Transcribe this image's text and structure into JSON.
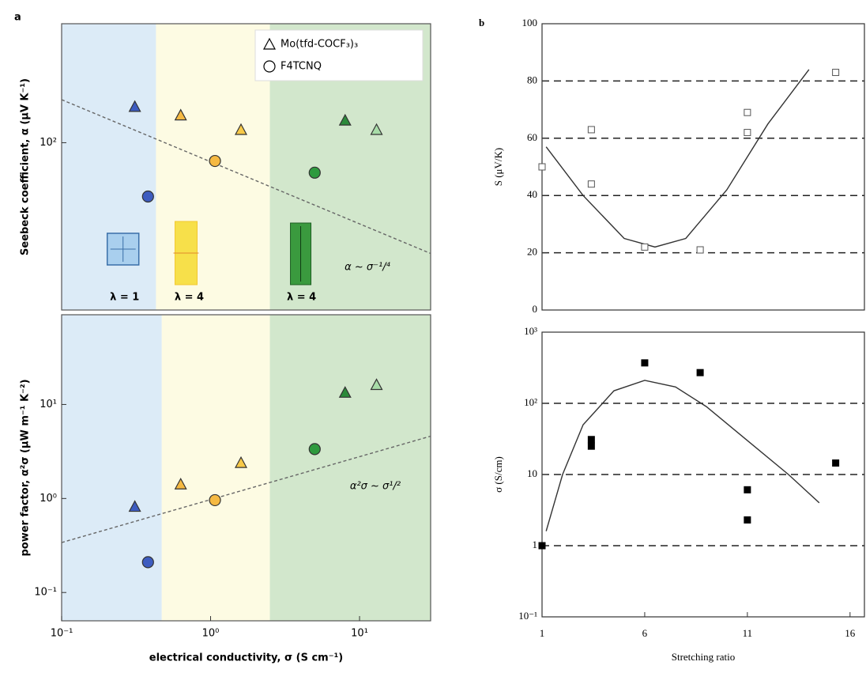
{
  "chart_data": [
    {
      "type": "scatter",
      "panel": "a",
      "ylabel": "Seebeck coefficient, α (μV K⁻¹)",
      "xlog": true,
      "ylog": true,
      "xlim": [
        0.1,
        30
      ],
      "ylim": [
        33,
        220
      ],
      "yticks": [
        {
          "value": 100,
          "label": "10²"
        }
      ],
      "regions": [
        {
          "from": 0.1,
          "to": 0.43,
          "color": "#dcebf7",
          "label": "λ = 1",
          "label_color": "#3b4fb0"
        },
        {
          "from": 0.43,
          "to": 2.5,
          "color": "#fdfbe3",
          "label": "λ = 4",
          "label_color": "#f2b830"
        },
        {
          "from": 2.5,
          "to": 30,
          "color": "#d2e7cc",
          "label": "λ = 4",
          "label_color": "#2e9a3e"
        }
      ],
      "legend": "upper right",
      "series": [
        {
          "name": "Mo(tfd-COCF₃)₃",
          "marker": "triangle",
          "x": [
            0.31,
            0.63,
            1.6,
            8,
            13
          ],
          "values": [
            127,
            120,
            109,
            116,
            109
          ],
          "colors": [
            "#3d5cc0",
            "#f5b942",
            "#f7c948",
            "#2b8a3a",
            "#a8dca8"
          ]
        },
        {
          "name": "F4TCNQ",
          "marker": "circle",
          "x": [
            0.38,
            1.07,
            5
          ],
          "values": [
            70,
            88.6,
            82
          ],
          "colors": [
            "#3d5cc0",
            "#f5b942",
            "#2e9a3e"
          ]
        }
      ],
      "fit": {
        "x": [
          0.1,
          30
        ],
        "y": [
          133,
          48
        ],
        "style": "dashed"
      },
      "annotation": "α ~ σ⁻¹/⁴"
    },
    {
      "type": "scatter",
      "ylabel": "power factor, α²σ (μW m⁻¹ K⁻²)",
      "xlabel": "electrical conductivity, σ (S cm⁻¹)",
      "xlog": true,
      "ylog": true,
      "xlim": [
        0.1,
        30
      ],
      "ylim": [
        0.05,
        90
      ],
      "xticks": [
        {
          "value": 0.1,
          "label": "10⁻¹"
        },
        {
          "value": 1,
          "label": "10⁰"
        },
        {
          "value": 10,
          "label": "10¹"
        }
      ],
      "yticks": [
        {
          "value": 0.1,
          "label": "10⁻¹"
        },
        {
          "value": 1,
          "label": "10⁰"
        },
        {
          "value": 10,
          "label": "10¹"
        }
      ],
      "regions": [
        {
          "from": 0.1,
          "to": 0.47,
          "color": "#dcebf7"
        },
        {
          "from": 0.47,
          "to": 2.5,
          "color": "#fdfbe3"
        },
        {
          "from": 2.5,
          "to": 30,
          "color": "#d2e7cc"
        }
      ],
      "series": [
        {
          "marker": "triangle",
          "x": [
            0.31,
            0.63,
            1.6,
            8,
            13
          ],
          "values": [
            0.82,
            1.42,
            2.4,
            13.4,
            16.2
          ],
          "colors": [
            "#3d5cc0",
            "#f5b942",
            "#f7c948",
            "#2b8a3a",
            "#a8dca8"
          ]
        },
        {
          "marker": "circle",
          "x": [
            0.38,
            1.07,
            5
          ],
          "values": [
            0.21,
            0.96,
            3.35
          ],
          "colors": [
            "#3d5cc0",
            "#f5b942",
            "#2e9a3e"
          ]
        }
      ],
      "fit": {
        "x": [
          0.1,
          30
        ],
        "y": [
          0.34,
          4.6
        ],
        "style": "dashed"
      },
      "annotation": "α²σ ~ σ¹/²"
    },
    {
      "type": "scatter",
      "panel": "b",
      "ylabel": "S (μV/K)",
      "xlim": [
        1,
        16.7
      ],
      "ylim": [
        0,
        100
      ],
      "yticks": [
        0,
        20,
        40,
        60,
        80,
        100
      ],
      "grid_lines": [
        20,
        40,
        60,
        80
      ],
      "series": [
        {
          "marker": "square",
          "filled": false,
          "color": "#555",
          "x": [
            1,
            3.4,
            3.4,
            6,
            8.7,
            11,
            11,
            15.3
          ],
          "values": [
            50,
            63,
            44,
            22,
            21,
            69,
            62,
            83
          ]
        }
      ],
      "fit": {
        "x": [
          1.2,
          3,
          5,
          6.5,
          8,
          10,
          12,
          14
        ],
        "y": [
          57,
          40,
          25,
          22,
          25,
          42,
          65,
          84
        ],
        "style": "solid"
      }
    },
    {
      "type": "scatter",
      "ylabel": "σ (S/cm)",
      "xlabel": "Stretching ratio",
      "ylog": true,
      "xlim": [
        1,
        16.7
      ],
      "ylim": [
        0.1,
        1000
      ],
      "xticks": [
        1,
        6,
        11,
        16
      ],
      "yticks": [
        {
          "value": 0.1,
          "label": "10⁻¹"
        },
        1,
        10,
        {
          "value": 100,
          "label": "10²"
        },
        {
          "value": 1000,
          "label": "10³"
        }
      ],
      "grid_lines": [
        1,
        10,
        100
      ],
      "series": [
        {
          "marker": "square",
          "filled": true,
          "color": "#000",
          "x": [
            1,
            3.4,
            3.4,
            6,
            8.7,
            11,
            11,
            15.3
          ],
          "values": [
            1,
            31,
            25,
            370,
            270,
            6.1,
            2.3,
            14.5
          ]
        }
      ],
      "fit": {
        "x": [
          1.2,
          2,
          3,
          4.5,
          6,
          7.5,
          9,
          11,
          13,
          14.5
        ],
        "y": [
          1.6,
          10,
          50,
          150,
          210,
          170,
          90,
          30,
          10,
          4
        ],
        "style": "solid"
      }
    }
  ]
}
